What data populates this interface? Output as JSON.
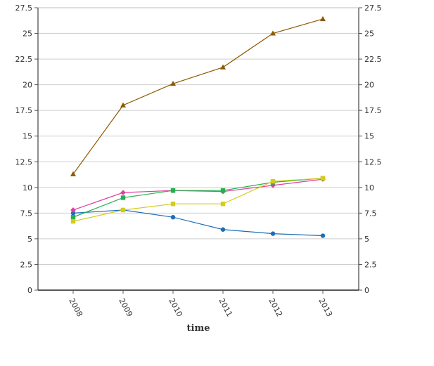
{
  "chart_data": {
    "type": "line",
    "title": "",
    "xlabel": "time",
    "ylabel": "",
    "categories": [
      "2008",
      "2009",
      "2010",
      "2011",
      "2012",
      "2013"
    ],
    "ylim": [
      0,
      27.5
    ],
    "yticks": [
      "0",
      "2.5",
      "5",
      "7.5",
      "10",
      "12.5",
      "15",
      "17.5",
      "20",
      "22.5",
      "25",
      "27.5"
    ],
    "ytick_values": [
      0,
      2.5,
      5,
      7.5,
      10,
      12.5,
      15,
      17.5,
      20,
      22.5,
      25,
      27.5
    ],
    "grid": true,
    "legend": "none",
    "series": [
      {
        "color": "#1f6bb5",
        "marker": "circle",
        "values": [
          7.5,
          7.8,
          7.1,
          5.9,
          5.5,
          5.3
        ]
      },
      {
        "color": "#e0409c",
        "marker": "diamond",
        "values": [
          7.8,
          9.5,
          9.7,
          9.6,
          10.2,
          10.8
        ]
      },
      {
        "color": "#22b14c",
        "marker": "square",
        "values": [
          7.1,
          9.0,
          9.7,
          9.7,
          10.5,
          10.9
        ]
      },
      {
        "color": "#d4cc1c",
        "marker": "square",
        "values": [
          6.7,
          7.8,
          8.4,
          8.4,
          10.6,
          10.9
        ]
      },
      {
        "color": "#8b5a00",
        "marker": "triangle",
        "values": [
          11.3,
          18.0,
          20.1,
          21.7,
          25.0,
          26.4
        ]
      }
    ]
  }
}
